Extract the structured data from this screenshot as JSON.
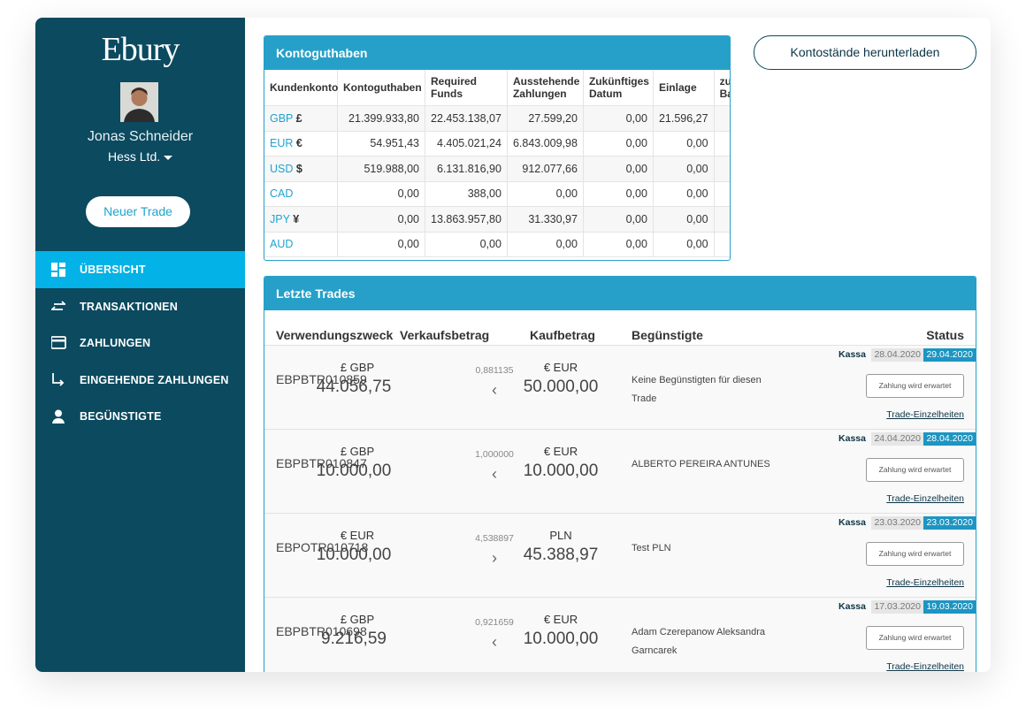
{
  "sidebar": {
    "logo": "Ebury",
    "user_name": "Jonas Schneider",
    "company": "Hess Ltd.",
    "new_trade_button": "Neuer Trade",
    "nav": [
      {
        "label": "ÜBERSICHT",
        "active": true
      },
      {
        "label": "TRANSAKTIONEN"
      },
      {
        "label": "ZAHLUNGEN"
      },
      {
        "label": "EINGEHENDE ZAHLUNGEN"
      },
      {
        "label": "BEGÜNSTIGTE"
      }
    ]
  },
  "download_button": "Kontostände herunterladen",
  "balances": {
    "title": "Kontoguthaben",
    "columns": [
      "Kundenkonto",
      "Kontoguthaben",
      "Required Funds",
      "Ausstehende Zahlungen",
      "Zukünftiges Datum",
      "Einlage",
      "zu Ba"
    ],
    "rows": [
      {
        "currency": "GBP",
        "symbol": "£",
        "values": [
          "21.399.933,80",
          "22.453.138,07",
          "27.599,20",
          "0,00",
          "21.596,27"
        ]
      },
      {
        "currency": "EUR",
        "symbol": "€",
        "values": [
          "54.951,43",
          "4.405.021,24",
          "6.843.009,98",
          "0,00",
          "0,00"
        ]
      },
      {
        "currency": "USD",
        "symbol": "$",
        "values": [
          "519.988,00",
          "6.131.816,90",
          "912.077,66",
          "0,00",
          "0,00"
        ]
      },
      {
        "currency": "CAD",
        "values": [
          "0,00",
          "388,00",
          "0,00",
          "0,00",
          "0,00"
        ]
      },
      {
        "currency": "JPY",
        "symbol": "¥",
        "values": [
          "0,00",
          "13.863.957,80",
          "31.330,97",
          "0,00",
          "0,00"
        ]
      },
      {
        "currency": "AUD",
        "values": [
          "0,00",
          "0,00",
          "0,00",
          "0,00",
          "0,00"
        ]
      }
    ]
  },
  "trades": {
    "title": "Letzte Trades",
    "columns": [
      "Verwendungszweck",
      "Verkaufsbetrag",
      "Kaufbetrag",
      "Begünstigte",
      "Status"
    ],
    "rows": [
      {
        "reference": "EBPBTR010859",
        "sell_currency": "£ GBP",
        "sell_amount": "44.056,75",
        "rate": "0,881135",
        "arrow": "‹",
        "buy_currency": "€ EUR",
        "buy_amount": "50.000,00",
        "beneficiary": "Keine Begünstigten für diesen Trade",
        "type": "Kassa",
        "trade_date": "28.04.2020",
        "value_date": "29.04.2020",
        "status_button": "Zahlung wird erwartet",
        "details_link": "Trade-Einzelheiten"
      },
      {
        "reference": "EBPBTR010847",
        "sell_currency": "£ GBP",
        "sell_amount": "10.000,00",
        "rate": "1,000000",
        "arrow": "‹",
        "buy_currency": "€ EUR",
        "buy_amount": "10.000,00",
        "beneficiary": "ALBERTO PEREIRA ANTUNES",
        "type": "Kassa",
        "trade_date": "24.04.2020",
        "value_date": "28.04.2020",
        "status_button": "Zahlung wird erwartet",
        "details_link": "Trade-Einzelheiten"
      },
      {
        "reference": "EBPOTR010718",
        "sell_currency": "€ EUR",
        "sell_amount": "10.000,00",
        "rate": "4,538897",
        "arrow": "›",
        "buy_currency": "PLN",
        "buy_amount": "45.388,97",
        "beneficiary": "Test PLN",
        "type": "Kassa",
        "trade_date": "23.03.2020",
        "value_date": "23.03.2020",
        "status_button": "Zahlung wird erwartet",
        "details_link": "Trade-Einzelheiten"
      },
      {
        "reference": "EBPBTR010698",
        "sell_currency": "£ GBP",
        "sell_amount": "9.216,59",
        "rate": "0,921659",
        "arrow": "‹",
        "buy_currency": "€ EUR",
        "buy_amount": "10.000,00",
        "beneficiary": "Adam Czerepanow Aleksandra Garncarek",
        "type": "Kassa",
        "trade_date": "17.03.2020",
        "value_date": "19.03.2020",
        "status_button": "Zahlung wird erwartet",
        "details_link": "Trade-Einzelheiten"
      }
    ]
  }
}
